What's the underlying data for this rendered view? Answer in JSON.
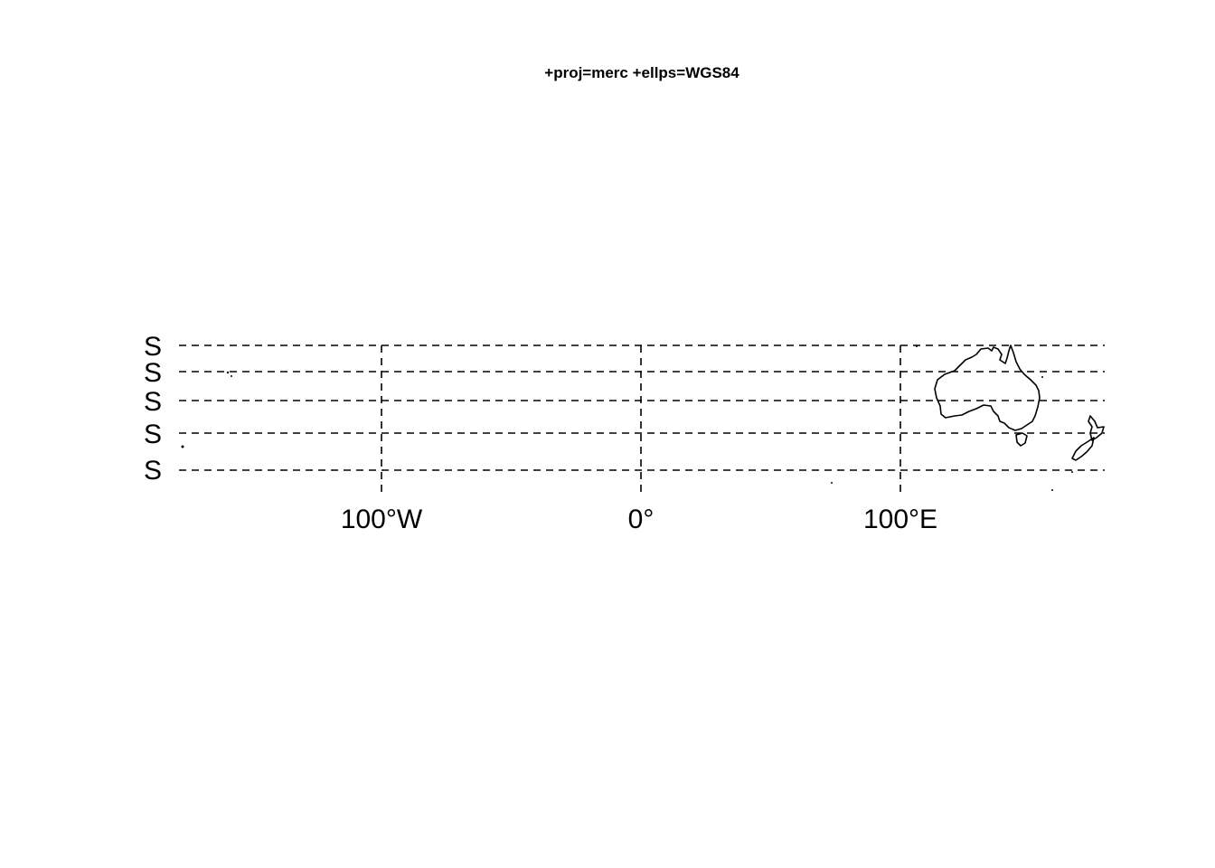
{
  "title": "+proj=merc +ellps=WGS84",
  "map": {
    "projection": "Mercator (WGS84)",
    "gridlines": true,
    "gridline_style": "dashed",
    "longitude_labels": [
      "100°W",
      "0°",
      "100°E"
    ],
    "latitude_labels": [
      "S",
      "S",
      "S",
      "S",
      "S"
    ],
    "landmasses": [
      "australia-outline",
      "tasmania-outline",
      "new-zealand-outline"
    ]
  }
}
